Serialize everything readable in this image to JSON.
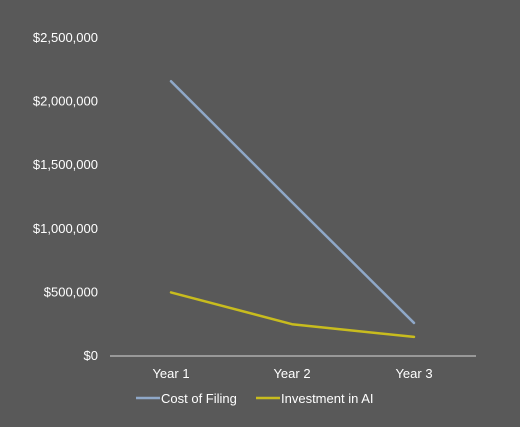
{
  "chart_data": {
    "type": "line",
    "title": "",
    "xlabel": "",
    "ylabel": "",
    "categories": [
      "Year 1",
      "Year 2",
      "Year 3"
    ],
    "ylim": [
      0,
      2500000
    ],
    "y_ticks": [
      0,
      500000,
      1000000,
      1500000,
      2000000,
      2500000
    ],
    "y_tick_labels": [
      "$0",
      "$500,000",
      "$1,000,000",
      "$1,500,000",
      "$2,000,000",
      "$2,500,000"
    ],
    "grid": false,
    "legend_position": "bottom",
    "series": [
      {
        "name": "Cost of Filing",
        "color": "#8fa8c8",
        "values": [
          2160000,
          1210000,
          260000
        ]
      },
      {
        "name": "Investment in AI",
        "color": "#c8bc1e",
        "values": [
          500000,
          250000,
          150000
        ]
      }
    ],
    "axis_color": "#d9d9d9"
  }
}
